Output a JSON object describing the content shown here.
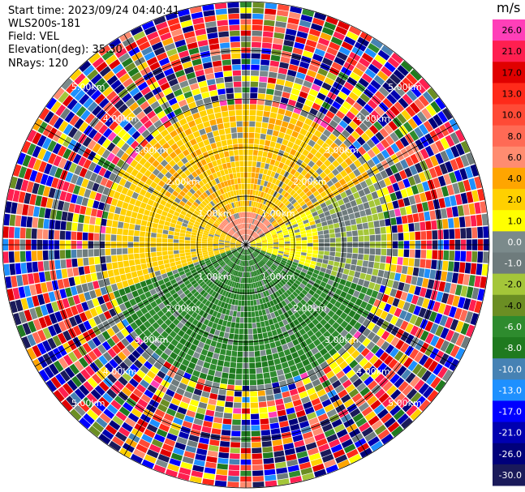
{
  "header": {
    "start_time": "Start time: 2023/09/24 04:40:41",
    "instrument": "WLS200s-181",
    "field": "Field: VEL",
    "elevation": "Elevation(deg): 35.30",
    "nrays": "NRays: 120"
  },
  "colorbar": {
    "unit": "m/s",
    "ticks": [
      "26.0",
      "21.0",
      "17.0",
      "13.0",
      "10.0",
      "8.0",
      "6.0",
      "4.0",
      "2.0",
      "1.0",
      "0.0",
      "-1.0",
      "-2.0",
      "-4.0",
      "-6.0",
      "-8.0",
      "-10.0",
      "-13.0",
      "-17.0",
      "-21.0",
      "-26.0",
      "-30.0"
    ],
    "colors": [
      "#ff3fb8",
      "#ff1f50",
      "#e00000",
      "#ff2a1a",
      "#ff4a36",
      "#ff6a55",
      "#ff8c70",
      "#ffa500",
      "#ffd000",
      "#ffff00",
      "#7b8a8b",
      "#6e7b7c",
      "#a4c639",
      "#6b8e23",
      "#2e8b2e",
      "#1f7a1f",
      "#4682b4",
      "#1e90ff",
      "#0000ff",
      "#0000b0",
      "#00007a",
      "#1a1a5a"
    ]
  },
  "chart_data": {
    "type": "ppi-scan",
    "field": "VEL",
    "units": "m/s",
    "nrays": 120,
    "elevation_deg": 35.3,
    "range_ring_labels": [
      "1.00km",
      "2.00km",
      "3.00km",
      "4.00km",
      "5.00km"
    ],
    "spoke_angles_deg": [
      0,
      30,
      60,
      90,
      120,
      150,
      180,
      210,
      240,
      270,
      300,
      330
    ],
    "max_range_km": 5.0,
    "sectors": [
      {
        "name": "north",
        "color_class": "positive",
        "approx_velocity_ms": 3.5
      },
      {
        "name": "south",
        "color_class": "negative",
        "approx_velocity_ms": -4.5
      },
      {
        "name": "east",
        "color_class": "positive-weak",
        "approx_velocity_ms": 1.5
      },
      {
        "name": "west",
        "color_class": "positive",
        "approx_velocity_ms": 2.0
      }
    ]
  }
}
